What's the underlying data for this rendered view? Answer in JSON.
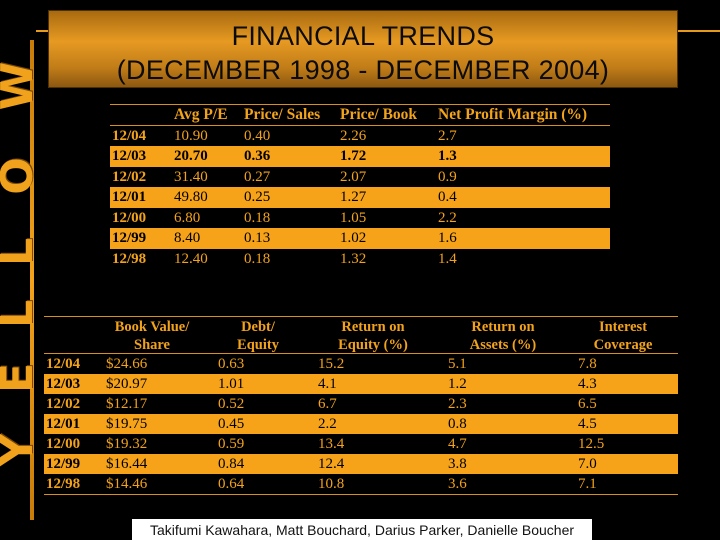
{
  "brand": {
    "letters": [
      "Y",
      "E",
      "L",
      "L",
      "O",
      "W"
    ]
  },
  "title": {
    "line1": "FINANCIAL TRENDS",
    "line2": "(DECEMBER 1998 - DECEMBER 2004)"
  },
  "table1": {
    "headers": [
      "",
      "Avg P/E",
      "Price/ Sales",
      "Price/ Book",
      "Net Profit Margin (%)"
    ],
    "rows": [
      {
        "label": "12/04",
        "cells": [
          "10.90",
          "0.40",
          "2.26",
          "2.7"
        ],
        "highlight": false,
        "bold": false
      },
      {
        "label": "12/03",
        "cells": [
          "20.70",
          "0.36",
          "1.72",
          "1.3"
        ],
        "highlight": true,
        "bold": true
      },
      {
        "label": "12/02",
        "cells": [
          "31.40",
          "0.27",
          "2.07",
          "0.9"
        ],
        "highlight": false,
        "bold": false
      },
      {
        "label": "12/01",
        "cells": [
          "49.80",
          "0.25",
          "1.27",
          "0.4"
        ],
        "highlight": true,
        "bold": false
      },
      {
        "label": "12/00",
        "cells": [
          "6.80",
          "0.18",
          "1.05",
          "2.2"
        ],
        "highlight": false,
        "bold": false
      },
      {
        "label": "12/99",
        "cells": [
          "8.40",
          "0.13",
          "1.02",
          "1.6"
        ],
        "highlight": true,
        "bold": false
      },
      {
        "label": "12/98",
        "cells": [
          "12.40",
          "0.18",
          "1.32",
          "1.4"
        ],
        "highlight": false,
        "bold": false
      }
    ]
  },
  "table2": {
    "headers_line1": [
      "",
      "Book Value/",
      "Debt/",
      "Return on",
      "Return on",
      "Interest"
    ],
    "headers_line2": [
      "",
      "Share",
      "Equity",
      "Equity (%)",
      "Assets (%)",
      "Coverage"
    ],
    "rows": [
      {
        "label": "12/04",
        "cells": [
          "$24.66",
          "0.63",
          "15.2",
          "5.1",
          "7.8"
        ],
        "highlight": false
      },
      {
        "label": "12/03",
        "cells": [
          "$20.97",
          "1.01",
          "4.1",
          "1.2",
          "4.3"
        ],
        "highlight": true
      },
      {
        "label": "12/02",
        "cells": [
          "$12.17",
          "0.52",
          "6.7",
          "2.3",
          "6.5"
        ],
        "highlight": false
      },
      {
        "label": "12/01",
        "cells": [
          "$19.75",
          "0.45",
          "2.2",
          "0.8",
          "4.5"
        ],
        "highlight": true
      },
      {
        "label": "12/00",
        "cells": [
          "$19.32",
          "0.59",
          "13.4",
          "4.7",
          "12.5"
        ],
        "highlight": false
      },
      {
        "label": "12/99",
        "cells": [
          "$16.44",
          "0.84",
          "12.4",
          "3.8",
          "7.0"
        ],
        "highlight": true
      },
      {
        "label": "12/98",
        "cells": [
          "$14.46",
          "0.64",
          "10.8",
          "3.6",
          "7.1"
        ],
        "highlight": false
      }
    ]
  },
  "footer": {
    "authors": "Takifumi Kawahara, Matt Bouchard, Darius Parker, Danielle Boucher"
  },
  "colors": {
    "accent": "#f7a31a",
    "background": "#000000"
  }
}
